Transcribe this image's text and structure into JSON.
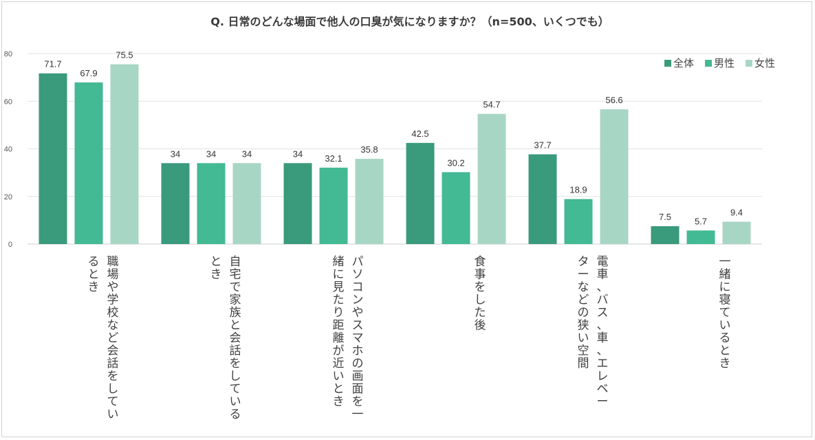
{
  "chart_data": {
    "type": "bar",
    "title": "Q. 日常のどんな場面で他人の口臭が気になりますか？（n=500、いくつでも）",
    "categories": [
      [
        "職場や学校など会話をしてい",
        "るとき"
      ],
      [
        "自宅で家族と会話をしている",
        "とき"
      ],
      [
        "パソコンやスマホの画面を一",
        "緒に見たり距離が近いとき"
      ],
      [
        "食事をした後"
      ],
      [
        "電車、バス、車、エレベー",
        "ターなどの狭い空間"
      ],
      [
        "一緒に寝ているとき"
      ]
    ],
    "series": [
      {
        "name": "全体",
        "color": "#3a9a7c",
        "values": [
          71.7,
          34,
          34,
          42.5,
          37.7,
          7.5
        ],
        "labels": [
          "71.7",
          "34",
          "34",
          "42.5",
          "37.7",
          "7.5"
        ]
      },
      {
        "name": "男性",
        "color": "#43b994",
        "values": [
          67.9,
          34,
          32.1,
          30.2,
          18.9,
          5.7
        ],
        "labels": [
          "67.9",
          "34",
          "32.1",
          "30.2",
          "18.9",
          "5.7"
        ]
      },
      {
        "name": "女性",
        "color": "#a8d6c4",
        "values": [
          75.5,
          34,
          35.8,
          54.7,
          56.6,
          9.4
        ],
        "labels": [
          "75.5",
          "34",
          "35.8",
          "54.7",
          "56.6",
          "9.4"
        ]
      }
    ],
    "yticks": [
      "0",
      "20",
      "40",
      "60",
      "80"
    ],
    "ylim": [
      0,
      80
    ],
    "grid": true,
    "legend_position": "top-right"
  }
}
